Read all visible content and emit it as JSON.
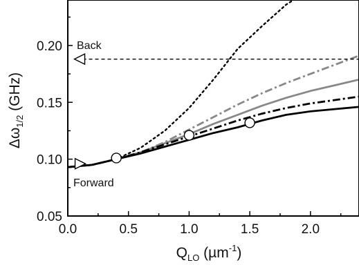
{
  "chart_data": {
    "type": "line",
    "x_axis": {
      "label_main": "Q",
      "label_sub": "LO",
      "label_unit": " (µm",
      "label_exp": "-1",
      "label_close": ")",
      "range": [
        0.0,
        2.4
      ],
      "ticks": [
        0.0,
        0.5,
        1.0,
        1.5,
        2.0
      ],
      "tick_labels": [
        "0.0",
        "0.5",
        "1.0",
        "1.5",
        "2.0"
      ]
    },
    "y_axis": {
      "label_main": "Δω",
      "label_sub": "1/2",
      "label_unit": " (GHz)",
      "range": [
        0.05,
        0.24
      ],
      "ticks": [
        0.05,
        0.1,
        0.15,
        0.2
      ],
      "tick_labels": [
        "0.05",
        "0.10",
        "0.15",
        "0.20"
      ]
    },
    "grid": false,
    "series": [
      {
        "style": "dotted",
        "color": "#000000",
        "x": [
          0.0,
          0.2,
          0.4,
          0.6,
          0.8,
          1.0,
          1.2,
          1.4,
          1.6,
          1.8,
          1.86
        ],
        "y": [
          0.093,
          0.095,
          0.1,
          0.11,
          0.125,
          0.145,
          0.17,
          0.197,
          0.217,
          0.236,
          0.24
        ]
      },
      {
        "style": "dashdot",
        "color": "#888888",
        "x": [
          0.0,
          0.2,
          0.4,
          0.6,
          0.8,
          1.0,
          1.2,
          1.4,
          1.6,
          1.8,
          2.0,
          2.2,
          2.4
        ],
        "y": [
          0.093,
          0.095,
          0.1,
          0.106,
          0.115,
          0.126,
          0.137,
          0.148,
          0.158,
          0.167,
          0.175,
          0.183,
          0.191
        ]
      },
      {
        "style": "solid",
        "color": "#888888",
        "x": [
          0.0,
          0.2,
          0.4,
          0.6,
          0.8,
          1.0,
          1.2,
          1.4,
          1.6,
          1.8,
          2.0,
          2.2,
          2.4
        ],
        "y": [
          0.093,
          0.095,
          0.1,
          0.106,
          0.114,
          0.122,
          0.131,
          0.139,
          0.147,
          0.154,
          0.16,
          0.165,
          0.17
        ]
      },
      {
        "style": "dashdot",
        "color": "#000000",
        "x": [
          0.0,
          0.2,
          0.4,
          0.6,
          0.8,
          1.0,
          1.2,
          1.4,
          1.6,
          1.8,
          2.0,
          2.2,
          2.4
        ],
        "y": [
          0.093,
          0.095,
          0.1,
          0.106,
          0.113,
          0.12,
          0.127,
          0.134,
          0.14,
          0.145,
          0.149,
          0.152,
          0.155
        ]
      },
      {
        "style": "solid",
        "color": "#000000",
        "x": [
          0.0,
          0.2,
          0.4,
          0.6,
          0.8,
          1.0,
          1.2,
          1.4,
          1.6,
          1.8,
          2.0,
          2.2,
          2.4
        ],
        "y": [
          0.093,
          0.095,
          0.1,
          0.105,
          0.111,
          0.117,
          0.123,
          0.128,
          0.134,
          0.139,
          0.142,
          0.144,
          0.146
        ]
      }
    ],
    "measured_points": {
      "marker": "open-circle",
      "x": [
        0.4,
        1.0,
        1.5
      ],
      "y": [
        0.101,
        0.121,
        0.132
      ]
    },
    "reference_lines": [
      {
        "label": "Back",
        "y": 0.188,
        "style": "dashed",
        "marker": "open-triangle-left",
        "marker_x": 0.1
      },
      {
        "label": "Forward",
        "y": 0.096,
        "marker": "open-triangle-right",
        "marker_x": 0.1
      }
    ]
  }
}
